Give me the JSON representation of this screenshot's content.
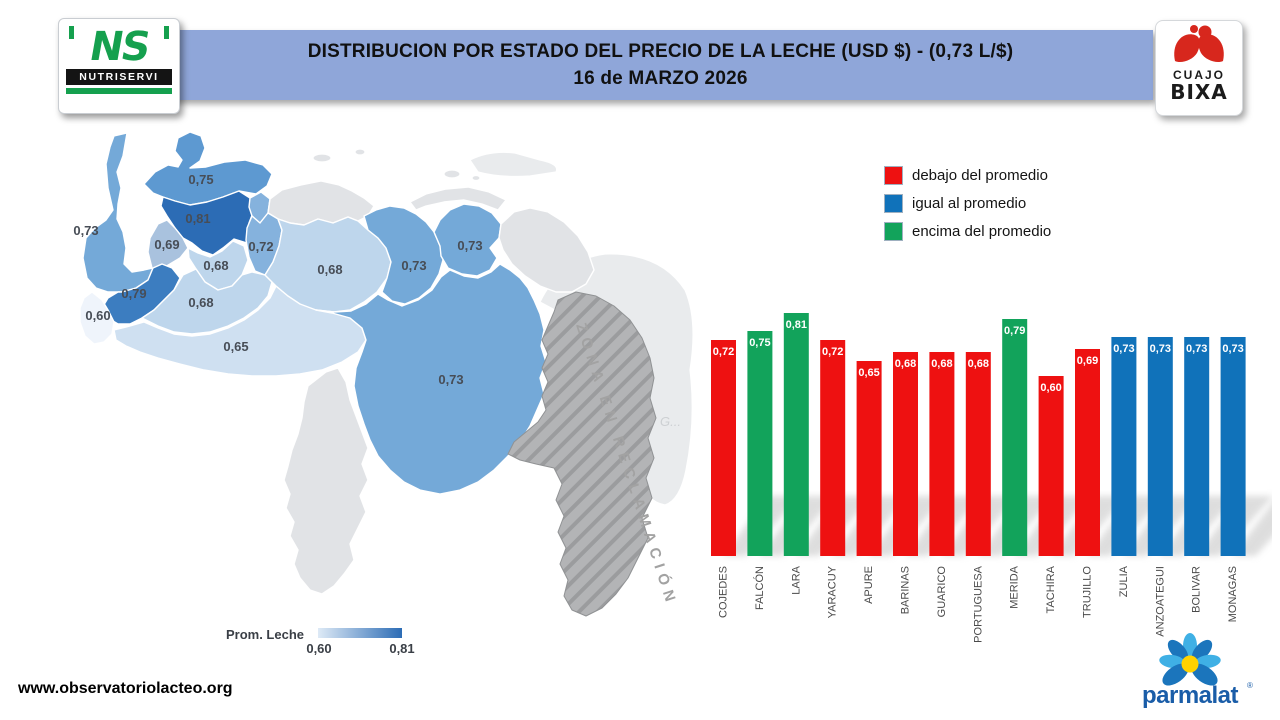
{
  "header": {
    "title_line1": "DISTRIBUCION POR ESTADO DEL PRECIO DE LA LECHE (USD $) - (0,73 L/$)",
    "title_line2": "16 de MARZO 2026",
    "banner_color": "#8FA6D9"
  },
  "logos": {
    "nutriservi": {
      "monogram": "NS",
      "name": "NUTRISERVI",
      "green": "#15A04E"
    },
    "cuajo_bixa": {
      "line1": "CUAJO",
      "line2": "BIXA",
      "red": "#D7271D"
    },
    "parmalat": {
      "name": "parmalat",
      "registered": "®",
      "blue_dark": "#1B75BC",
      "blue_light": "#3FB0E5",
      "text_blue": "#1A5DA8",
      "yellow": "#FFD200"
    }
  },
  "chart_legend": {
    "items": [
      {
        "key": "below",
        "label": "debajo del promedio"
      },
      {
        "key": "equal",
        "label": "igual al promedio"
      },
      {
        "key": "above",
        "label": "encima del promedio"
      }
    ]
  },
  "chart_data": {
    "type": "bar",
    "categories": [
      "COJEDES",
      "FALCÓN",
      "LARA",
      "YARACUY",
      "APURE",
      "BARINAS",
      "GUARICO",
      "PORTUGUESA",
      "MERIDA",
      "TACHIRA",
      "TRUJILLO",
      "ZULIA",
      "ANZOATEGUI",
      "BOLIVAR",
      "MONAGAS"
    ],
    "values": [
      0.72,
      0.75,
      0.81,
      0.72,
      0.65,
      0.68,
      0.68,
      0.68,
      0.79,
      0.6,
      0.69,
      0.73,
      0.73,
      0.73,
      0.73
    ],
    "value_labels": [
      "0,72",
      "0,75",
      "0,81",
      "0,72",
      "0,65",
      "0,68",
      "0,68",
      "0,68",
      "0,79",
      "0,60",
      "0,69",
      "0,73",
      "0,73",
      "0,73",
      "0,73"
    ],
    "status": [
      "below",
      "above",
      "above",
      "below",
      "below",
      "below",
      "below",
      "below",
      "above",
      "below",
      "below",
      "equal",
      "equal",
      "equal",
      "equal"
    ],
    "status_colors": {
      "below": "#EE1111",
      "equal": "#1072BA",
      "above": "#12A35B"
    },
    "average_label": "0,73",
    "ylim": [
      0,
      0.85
    ],
    "xlabel": "",
    "ylabel": "",
    "title": ""
  },
  "map": {
    "states": [
      {
        "name": "zulia",
        "value": "0,73",
        "color": "#74A9D8"
      },
      {
        "name": "falcon",
        "value": "0,75",
        "color": "#5D99D1"
      },
      {
        "name": "lara",
        "value": "0,81",
        "color": "#2C6CB5"
      },
      {
        "name": "trujillo",
        "value": "0,69",
        "color": "#A9C2DE"
      },
      {
        "name": "merida",
        "value": "0,79",
        "color": "#3C7DC0"
      },
      {
        "name": "tachira",
        "value": "0,60",
        "color": "#EFF4FB"
      },
      {
        "name": "yaracuy",
        "value": "",
        "color": "#85B2DD"
      },
      {
        "name": "cojedes",
        "value": "0,72",
        "color": "#85B2DD"
      },
      {
        "name": "portuguesa",
        "value": "0,68",
        "color": "#BED6EC"
      },
      {
        "name": "barinas",
        "value": "0,68",
        "color": "#BED6EC"
      },
      {
        "name": "apure",
        "value": "0,65",
        "color": "#CFE0F1"
      },
      {
        "name": "guarico",
        "value": "0,68",
        "color": "#BED6EC"
      },
      {
        "name": "anzoategui",
        "value": "0,73",
        "color": "#74A9D8"
      },
      {
        "name": "monagas",
        "value": "0,73",
        "color": "#74A9D8"
      },
      {
        "name": "bolivar",
        "value": "0,73",
        "color": "#74A9D8"
      }
    ],
    "no_data_color": "#E1E3E6",
    "backdrop_color": "#E9EBED",
    "zona_label": "ZONA EN RECLAMACIÓN",
    "partial_label": "G...",
    "gradient_legend": {
      "title": "Prom. Leche",
      "min": "0,60",
      "max": "0,81",
      "from": "#DEEAF6",
      "to": "#2C6CB5"
    }
  },
  "footer": {
    "url": "www.observatoriolacteo.org"
  }
}
